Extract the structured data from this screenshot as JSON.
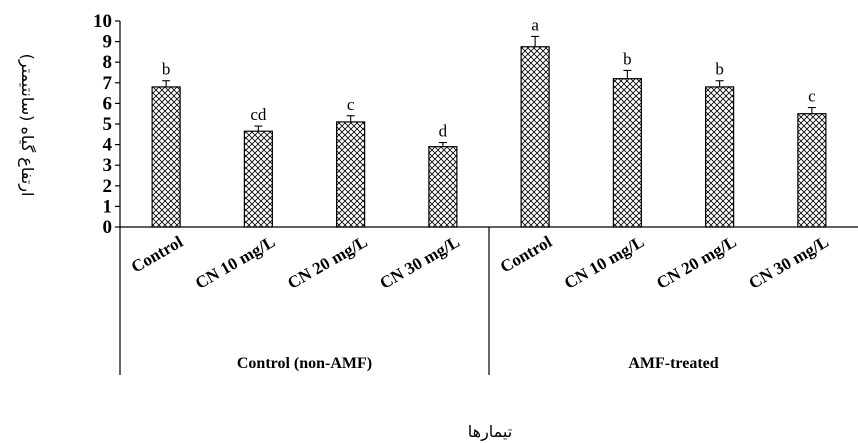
{
  "chart_data": {
    "type": "bar",
    "title": "",
    "xlabel": "تیمارها",
    "ylabel": "ارتفاع گیاه (سانتیمتر)",
    "ylim": [
      0,
      10
    ],
    "yticks": [
      0,
      1,
      2,
      3,
      4,
      5,
      6,
      7,
      8,
      9,
      10
    ],
    "groups": [
      {
        "label": "Control (non-AMF)",
        "start": 0,
        "count": 4
      },
      {
        "label": "AMF-treated",
        "start": 4,
        "count": 4
      }
    ],
    "categories": [
      "Control",
      "CN 10 mg/L",
      "CN 20 mg/L",
      "CN 30 mg/L",
      "Control",
      "CN 10 mg/L",
      "CN 20 mg/L",
      "CN 30 mg/L"
    ],
    "values": [
      6.8,
      4.65,
      5.1,
      3.9,
      8.75,
      7.2,
      6.8,
      5.5
    ],
    "errors": [
      0.3,
      0.25,
      0.3,
      0.2,
      0.5,
      0.4,
      0.3,
      0.3
    ],
    "letters": [
      "b",
      "cd",
      "c",
      "d",
      "a",
      "b",
      "b",
      "c"
    ],
    "bar_fill": "crosshatch",
    "grid": false,
    "legend": "none"
  }
}
